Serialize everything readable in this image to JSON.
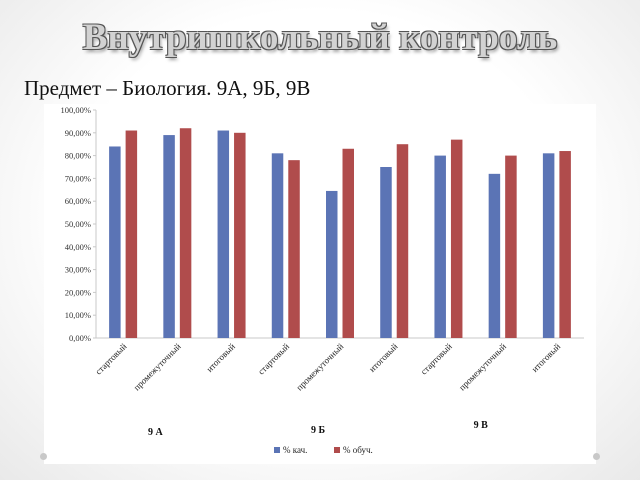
{
  "slide": {
    "title": "Внутришкольный контроль",
    "subtitle": "Предмет – Биология. 9А, 9Б, 9В"
  },
  "chart_data": {
    "type": "bar",
    "categories": [
      "стартовый",
      "промежуточный",
      "итоговый",
      "стартовый",
      "промежуточный",
      "итоговый",
      "стартовый",
      "промежуточный",
      "итоговый"
    ],
    "groups": [
      {
        "label": "9 А",
        "from": 0,
        "to": 2
      },
      {
        "label": "9 Б",
        "from": 3,
        "to": 5
      },
      {
        "label": "9 В",
        "from": 6,
        "to": 8
      }
    ],
    "series": [
      {
        "name": "% кач.",
        "color": "#5b74b5",
        "values": [
          84,
          89,
          91,
          81,
          64.5,
          75,
          80,
          72,
          81
        ]
      },
      {
        "name": "% обуч.",
        "color": "#b04c4c",
        "values": [
          91,
          92,
          90,
          78,
          83,
          85,
          87,
          80,
          82
        ]
      }
    ],
    "yticks": [
      "0,00%",
      "10,00%",
      "20,00%",
      "30,00%",
      "40,00%",
      "50,00%",
      "60,00%",
      "70,00%",
      "80,00%",
      "90,00%",
      "100,00%"
    ],
    "ylim": [
      0,
      100
    ],
    "grid": false,
    "legend_position": "bottom"
  }
}
